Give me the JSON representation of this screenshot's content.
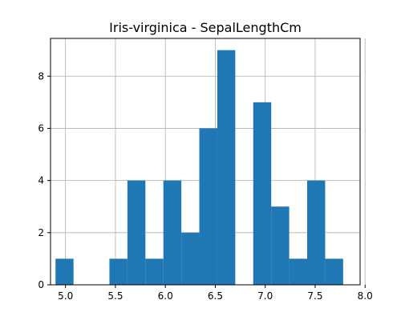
{
  "chart_data": {
    "type": "bar",
    "title": "Iris-virginica - SepalLengthCm",
    "xlabel": "",
    "ylabel": "",
    "xlim": [
      4.85,
      7.95
    ],
    "ylim": [
      0,
      9.45
    ],
    "bin_width": 0.18,
    "grid": true,
    "color": "#1f77b4",
    "bins": [
      {
        "start": 4.9,
        "end": 5.08,
        "count": 1
      },
      {
        "start": 5.08,
        "end": 5.26,
        "count": 0
      },
      {
        "start": 5.26,
        "end": 5.44,
        "count": 0
      },
      {
        "start": 5.44,
        "end": 5.62,
        "count": 1
      },
      {
        "start": 5.62,
        "end": 5.8,
        "count": 4
      },
      {
        "start": 5.8,
        "end": 5.98,
        "count": 1
      },
      {
        "start": 5.98,
        "end": 6.16,
        "count": 4
      },
      {
        "start": 6.16,
        "end": 6.34,
        "count": 2
      },
      {
        "start": 6.34,
        "end": 6.52,
        "count": 6
      },
      {
        "start": 6.52,
        "end": 6.7,
        "count": 9
      },
      {
        "start": 6.7,
        "end": 6.88,
        "count": 0
      },
      {
        "start": 6.88,
        "end": 7.06,
        "count": 7
      },
      {
        "start": 7.06,
        "end": 7.24,
        "count": 3
      },
      {
        "start": 7.24,
        "end": 7.42,
        "count": 1
      },
      {
        "start": 7.42,
        "end": 7.6,
        "count": 4
      },
      {
        "start": 7.6,
        "end": 7.78,
        "count": 1
      },
      {
        "start": 7.78,
        "end": 7.96,
        "count": 0
      }
    ],
    "x_ticks": [
      "5.0",
      "5.5",
      "6.0",
      "6.5",
      "7.0",
      "7.5",
      "8.0"
    ],
    "y_ticks": [
      "0",
      "2",
      "4",
      "6",
      "8"
    ]
  }
}
